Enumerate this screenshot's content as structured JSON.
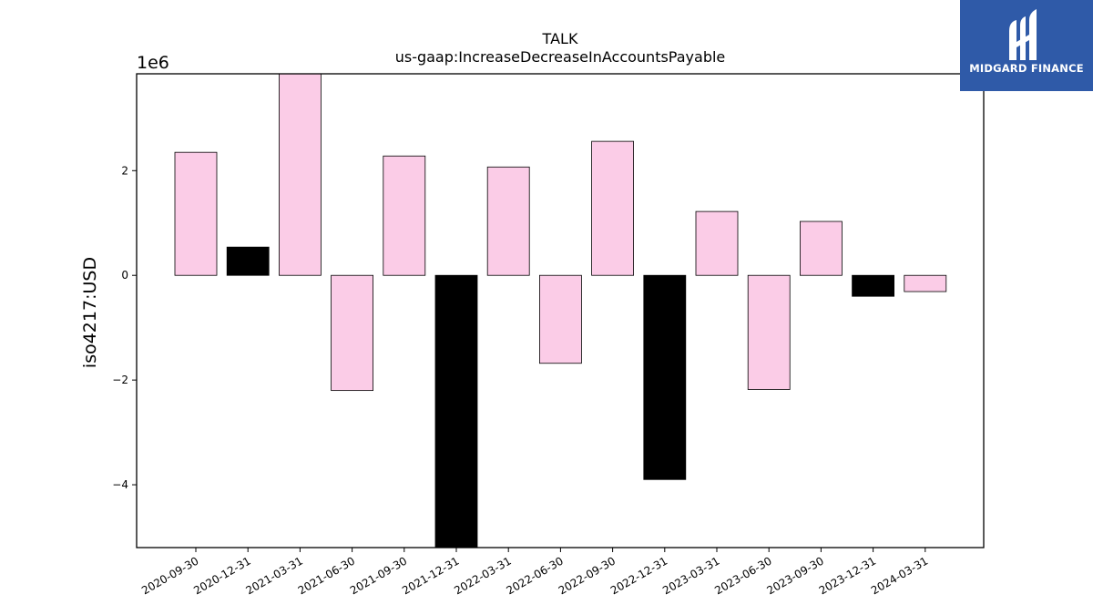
{
  "chart_data": {
    "type": "bar",
    "title": "TALK",
    "subtitle": "us-gaap:IncreaseDecreaseInAccountsPayable",
    "xlabel": "",
    "ylabel": "iso4217:USD",
    "y_scale_label": "1e6",
    "y_scale": 1000000,
    "ylim": [
      -5200000,
      3850000
    ],
    "yticks": [
      -4000000,
      -2000000,
      0,
      2000000
    ],
    "ytick_labels": [
      "−4",
      "−2",
      "0",
      "2"
    ],
    "grid": false,
    "categories": [
      "2020-09-30",
      "2020-12-31",
      "2021-03-31",
      "2021-06-30",
      "2021-09-30",
      "2021-12-31",
      "2022-03-31",
      "2022-06-30",
      "2022-09-30",
      "2022-12-31",
      "2023-03-31",
      "2023-06-30",
      "2023-09-30",
      "2023-12-31",
      "2024-03-31"
    ],
    "values": [
      2350000,
      540000,
      3950000,
      -2200000,
      2280000,
      -5300000,
      2070000,
      -1680000,
      2560000,
      -3900000,
      1220000,
      -2180000,
      1030000,
      -400000,
      -310000
    ],
    "colors": [
      "#fbcce7",
      "#000000",
      "#fbcce7",
      "#fbcce7",
      "#fbcce7",
      "#000000",
      "#fbcce7",
      "#fbcce7",
      "#fbcce7",
      "#000000",
      "#fbcce7",
      "#fbcce7",
      "#fbcce7",
      "#000000",
      "#fbcce7"
    ]
  },
  "logo": {
    "text": "MIDGARD FINANCE",
    "background": "#2f5aa8"
  }
}
